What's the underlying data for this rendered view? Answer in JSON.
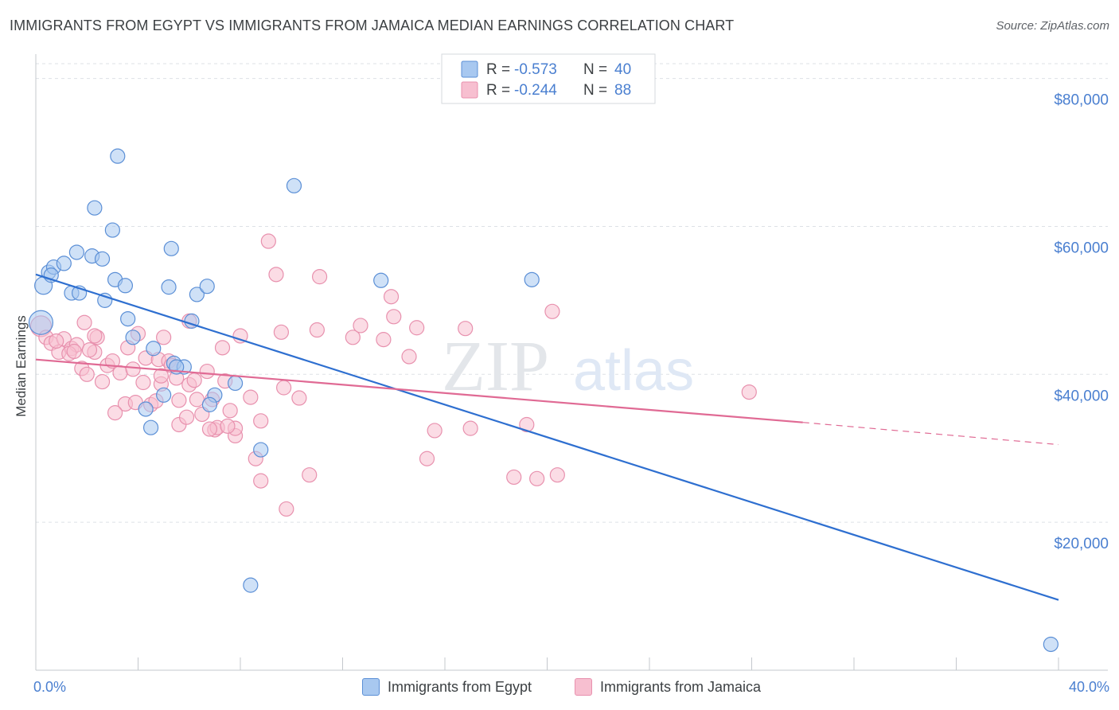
{
  "title": "IMMIGRANTS FROM EGYPT VS IMMIGRANTS FROM JAMAICA MEDIAN EARNINGS CORRELATION CHART",
  "source": "Source: ZipAtlas.com",
  "colors": {
    "egypt_fill": "#a8c8f0",
    "egypt_stroke": "#5b8fd6",
    "egypt_line": "#2e6fd0",
    "jamaica_fill": "#f7bfd0",
    "jamaica_stroke": "#e891ae",
    "jamaica_line": "#e06a94",
    "axis_text": "#4a7fd0",
    "grid": "#dde1e6"
  },
  "legend_top": {
    "egypt": {
      "r_label": "R =",
      "r_value": "-0.573",
      "n_label": "N =",
      "n_value": "40"
    },
    "jamaica": {
      "r_label": "R =",
      "r_value": "-0.244",
      "n_label": "N =",
      "n_value": "88"
    }
  },
  "watermark": {
    "zip": "ZIP",
    "atlas": "atlas"
  },
  "chart_data": {
    "type": "scatter",
    "title": "IMMIGRANTS FROM EGYPT VS IMMIGRANTS FROM JAMAICA MEDIAN EARNINGS CORRELATION CHART",
    "xlabel": "",
    "ylabel": "Median Earnings",
    "xlim": [
      0,
      40
    ],
    "ylim": [
      0,
      82000
    ],
    "x_tick_labels": {
      "left": "0.0%",
      "right": "40.0%"
    },
    "y_ticks": [
      {
        "value": 20000,
        "label": "$20,000"
      },
      {
        "value": 40000,
        "label": "$40,000"
      },
      {
        "value": 60000,
        "label": "$60,000"
      },
      {
        "value": 80000,
        "label": "$80,000"
      }
    ],
    "series": [
      {
        "name": "Immigrants from Egypt",
        "r": -0.573,
        "n": 40,
        "trend": {
          "x0": 0,
          "y0": 53500,
          "x1": 40,
          "y1": 9500
        },
        "points": [
          [
            0.2,
            47000,
            15
          ],
          [
            0.3,
            52000,
            11
          ],
          [
            0.5,
            53800,
            9
          ],
          [
            0.7,
            54500,
            9
          ],
          [
            0.6,
            53400,
            9
          ],
          [
            1.1,
            55000,
            9
          ],
          [
            1.6,
            56500,
            9
          ],
          [
            2.2,
            56000,
            9
          ],
          [
            1.4,
            51000,
            9
          ],
          [
            1.7,
            51000,
            9
          ],
          [
            3.2,
            69500,
            9
          ],
          [
            2.3,
            62500,
            9
          ],
          [
            3.0,
            59500,
            9
          ],
          [
            2.6,
            55600,
            9
          ],
          [
            3.1,
            52800,
            9
          ],
          [
            3.5,
            52000,
            9
          ],
          [
            2.7,
            50000,
            9
          ],
          [
            3.6,
            47500,
            9
          ],
          [
            3.8,
            45000,
            9
          ],
          [
            5.2,
            51800,
            9
          ],
          [
            5.3,
            57000,
            9
          ],
          [
            6.3,
            50800,
            9
          ],
          [
            6.7,
            51900,
            9
          ],
          [
            6.1,
            47200,
            9
          ],
          [
            4.6,
            43500,
            9
          ],
          [
            5.4,
            41500,
            9
          ],
          [
            5.8,
            41000,
            9
          ],
          [
            5.0,
            37200,
            9
          ],
          [
            4.3,
            35300,
            9
          ],
          [
            4.5,
            32800,
            9
          ],
          [
            7.0,
            37200,
            9
          ],
          [
            6.8,
            35900,
            9
          ],
          [
            7.8,
            38800,
            9
          ],
          [
            8.8,
            29800,
            9
          ],
          [
            8.4,
            11500,
            9
          ],
          [
            10.1,
            65500,
            9
          ],
          [
            13.5,
            52700,
            9
          ],
          [
            19.4,
            52800,
            9
          ],
          [
            39.7,
            3500,
            9
          ],
          [
            5.5,
            41000,
            9
          ]
        ]
      },
      {
        "name": "Immigrants from Jamaica",
        "r": -0.244,
        "n": 88,
        "trend": {
          "x0": 0,
          "y0": 42000,
          "x1": 30,
          "y1": 33500,
          "dash_x1": 40,
          "dash_y1": 30500
        },
        "points": [
          [
            0.2,
            46500,
            13
          ],
          [
            0.4,
            45000,
            9
          ],
          [
            0.6,
            44200,
            9
          ],
          [
            0.9,
            43000,
            9
          ],
          [
            1.1,
            44800,
            9
          ],
          [
            1.4,
            43500,
            9
          ],
          [
            1.6,
            44000,
            9
          ],
          [
            1.3,
            42800,
            9
          ],
          [
            1.8,
            40800,
            9
          ],
          [
            2.0,
            40000,
            9
          ],
          [
            1.9,
            47000,
            9
          ],
          [
            2.4,
            45000,
            9
          ],
          [
            2.3,
            45200,
            9
          ],
          [
            2.6,
            39000,
            9
          ],
          [
            2.3,
            43000,
            9
          ],
          [
            2.8,
            41200,
            9
          ],
          [
            3.0,
            41800,
            9
          ],
          [
            3.3,
            40200,
            9
          ],
          [
            3.5,
            36000,
            9
          ],
          [
            3.1,
            34800,
            9
          ],
          [
            3.8,
            40700,
            9
          ],
          [
            3.9,
            36200,
            9
          ],
          [
            4.0,
            45500,
            9
          ],
          [
            4.2,
            38900,
            9
          ],
          [
            4.3,
            42200,
            9
          ],
          [
            4.5,
            35900,
            9
          ],
          [
            4.7,
            36400,
            9
          ],
          [
            4.8,
            42000,
            9
          ],
          [
            4.9,
            38700,
            9
          ],
          [
            5.0,
            45000,
            9
          ],
          [
            5.2,
            41800,
            9
          ],
          [
            5.5,
            39500,
            9
          ],
          [
            5.6,
            36500,
            9
          ],
          [
            5.6,
            33200,
            9
          ],
          [
            5.9,
            34200,
            9
          ],
          [
            6.0,
            47200,
            9
          ],
          [
            6.0,
            38600,
            9
          ],
          [
            6.2,
            39200,
            9
          ],
          [
            6.3,
            36600,
            9
          ],
          [
            6.5,
            34600,
            9
          ],
          [
            6.7,
            40400,
            9
          ],
          [
            6.9,
            36600,
            9
          ],
          [
            7.0,
            32500,
            9
          ],
          [
            7.1,
            32800,
            9
          ],
          [
            7.3,
            43600,
            9
          ],
          [
            7.4,
            39100,
            9
          ],
          [
            7.6,
            35100,
            9
          ],
          [
            7.8,
            31700,
            9
          ],
          [
            7.8,
            32700,
            9
          ],
          [
            8.0,
            45200,
            9
          ],
          [
            8.4,
            36900,
            9
          ],
          [
            8.6,
            28600,
            9
          ],
          [
            8.8,
            33700,
            9
          ],
          [
            8.8,
            25600,
            9
          ],
          [
            9.1,
            58000,
            9
          ],
          [
            9.4,
            53500,
            9
          ],
          [
            9.6,
            45700,
            9
          ],
          [
            9.7,
            38200,
            9
          ],
          [
            9.8,
            21800,
            9
          ],
          [
            10.3,
            36800,
            9
          ],
          [
            10.7,
            26400,
            9
          ],
          [
            11.0,
            46000,
            9
          ],
          [
            11.1,
            53200,
            9
          ],
          [
            12.4,
            45000,
            9
          ],
          [
            12.7,
            46600,
            9
          ],
          [
            13.6,
            44700,
            9
          ],
          [
            13.9,
            50500,
            9
          ],
          [
            14.0,
            47800,
            9
          ],
          [
            14.6,
            42400,
            9
          ],
          [
            14.9,
            46300,
            9
          ],
          [
            15.3,
            28600,
            9
          ],
          [
            15.6,
            32400,
            9
          ],
          [
            16.8,
            46200,
            9
          ],
          [
            17.0,
            32700,
            9
          ],
          [
            18.7,
            26100,
            9
          ],
          [
            19.2,
            33200,
            9
          ],
          [
            19.6,
            25900,
            9
          ],
          [
            20.2,
            48500,
            9
          ],
          [
            20.4,
            26400,
            9
          ],
          [
            27.9,
            37600,
            9
          ],
          [
            3.6,
            43600,
            9
          ],
          [
            2.1,
            43300,
            9
          ],
          [
            4.9,
            39800,
            9
          ],
          [
            0.8,
            44500,
            9
          ],
          [
            1.5,
            43100,
            9
          ],
          [
            6.8,
            32600,
            9
          ],
          [
            5.3,
            41200,
            9
          ],
          [
            7.5,
            33000,
            9
          ]
        ]
      }
    ],
    "legend": [
      "Immigrants from Egypt",
      "Immigrants from Jamaica"
    ],
    "grid": true,
    "legend_placement": "top-center and bottom"
  }
}
